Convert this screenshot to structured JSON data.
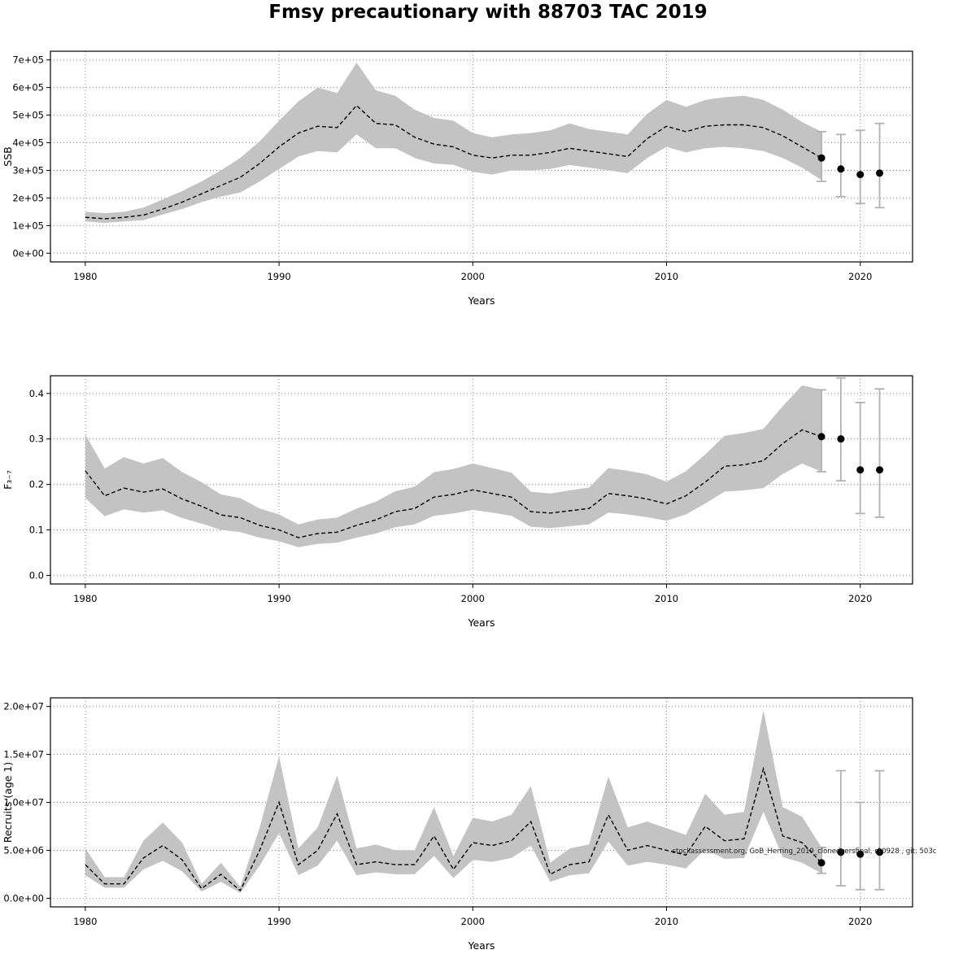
{
  "page": {
    "title": "Fmsy precautionary with 88703 TAC 2019"
  },
  "colors": {
    "band": "#c3c3c3",
    "line": "#000000",
    "point": "#000000",
    "error_bar": "#b2b2b2",
    "grid": "#8a8a8a"
  },
  "chart_data": [
    {
      "id": "ssb",
      "type": "area",
      "title": "",
      "xlabel": "Years",
      "ylabel": "SSB",
      "xlim": [
        1978.2,
        2022.7
      ],
      "ylim": [
        0,
        700000
      ],
      "grid": true,
      "xticks": [
        1980,
        1990,
        2000,
        2010,
        2020
      ],
      "yticks": [
        0,
        100000,
        200000,
        300000,
        400000,
        500000,
        600000,
        700000
      ],
      "ytick_labels": [
        "0e+00",
        "1e+05",
        "2e+05",
        "3e+05",
        "4e+05",
        "5e+05",
        "6e+05",
        "7e+05"
      ],
      "years": [
        1980,
        1981,
        1982,
        1983,
        1984,
        1985,
        1986,
        1987,
        1988,
        1989,
        1990,
        1991,
        1992,
        1993,
        1994,
        1995,
        1996,
        1997,
        1998,
        1999,
        2000,
        2001,
        2002,
        2003,
        2004,
        2005,
        2006,
        2007,
        2008,
        2009,
        2010,
        2011,
        2012,
        2013,
        2014,
        2015,
        2016,
        2017,
        2018
      ],
      "estimate": [
        130000,
        125000,
        130000,
        138000,
        160000,
        185000,
        215000,
        245000,
        275000,
        325000,
        385000,
        435000,
        460000,
        455000,
        535000,
        470000,
        465000,
        420000,
        395000,
        385000,
        355000,
        345000,
        355000,
        355000,
        365000,
        380000,
        370000,
        360000,
        350000,
        415000,
        460000,
        440000,
        460000,
        465000,
        465000,
        455000,
        425000,
        385000,
        345000
      ],
      "lo": [
        115000,
        110000,
        115000,
        120000,
        140000,
        160000,
        185000,
        205000,
        220000,
        260000,
        305000,
        350000,
        370000,
        365000,
        430000,
        380000,
        380000,
        345000,
        325000,
        320000,
        295000,
        285000,
        300000,
        300000,
        305000,
        320000,
        310000,
        300000,
        290000,
        345000,
        385000,
        365000,
        380000,
        385000,
        380000,
        370000,
        345000,
        310000,
        265000
      ],
      "hi": [
        150000,
        145000,
        150000,
        165000,
        195000,
        225000,
        260000,
        300000,
        345000,
        405000,
        480000,
        550000,
        600000,
        580000,
        690000,
        590000,
        570000,
        520000,
        490000,
        480000,
        435000,
        420000,
        430000,
        435000,
        445000,
        470000,
        450000,
        440000,
        430000,
        505000,
        555000,
        530000,
        555000,
        565000,
        570000,
        555000,
        520000,
        475000,
        440000
      ],
      "forecast": {
        "years": [
          2018,
          2019,
          2020,
          2021
        ],
        "values": [
          345000,
          305000,
          285000,
          290000
        ],
        "lo": [
          260000,
          205000,
          180000,
          165000
        ],
        "hi": [
          440000,
          430000,
          445000,
          470000
        ]
      }
    },
    {
      "id": "f",
      "type": "area",
      "title": "",
      "xlabel": "Years",
      "ylabel": "F₃₋₇",
      "xlim": [
        1978.2,
        2022.7
      ],
      "ylim": [
        0,
        0.42
      ],
      "grid": true,
      "xticks": [
        1980,
        1990,
        2000,
        2010,
        2020
      ],
      "yticks": [
        0,
        0.1,
        0.2,
        0.3,
        0.4
      ],
      "ytick_labels": [
        "0.0",
        "0.1",
        "0.2",
        "0.3",
        "0.4"
      ],
      "years": [
        1980,
        1981,
        1982,
        1983,
        1984,
        1985,
        1986,
        1987,
        1988,
        1989,
        1990,
        1991,
        1992,
        1993,
        1994,
        1995,
        1996,
        1997,
        1998,
        1999,
        2000,
        2001,
        2002,
        2003,
        2004,
        2005,
        2006,
        2007,
        2008,
        2009,
        2010,
        2011,
        2012,
        2013,
        2014,
        2015,
        2016,
        2017,
        2018
      ],
      "estimate": [
        0.23,
        0.175,
        0.192,
        0.183,
        0.19,
        0.168,
        0.152,
        0.133,
        0.127,
        0.11,
        0.1,
        0.083,
        0.092,
        0.095,
        0.11,
        0.122,
        0.14,
        0.147,
        0.172,
        0.178,
        0.188,
        0.18,
        0.172,
        0.14,
        0.137,
        0.142,
        0.147,
        0.18,
        0.175,
        0.168,
        0.157,
        0.175,
        0.205,
        0.24,
        0.243,
        0.252,
        0.29,
        0.32,
        0.305
      ],
      "lo": [
        0.17,
        0.13,
        0.145,
        0.138,
        0.143,
        0.126,
        0.114,
        0.1,
        0.095,
        0.083,
        0.075,
        0.062,
        0.069,
        0.072,
        0.083,
        0.092,
        0.106,
        0.112,
        0.131,
        0.136,
        0.144,
        0.138,
        0.131,
        0.107,
        0.104,
        0.108,
        0.112,
        0.138,
        0.134,
        0.128,
        0.12,
        0.134,
        0.158,
        0.184,
        0.187,
        0.192,
        0.223,
        0.246,
        0.228
      ],
      "hi": [
        0.31,
        0.235,
        0.26,
        0.246,
        0.258,
        0.227,
        0.205,
        0.178,
        0.17,
        0.147,
        0.134,
        0.112,
        0.123,
        0.127,
        0.147,
        0.162,
        0.185,
        0.195,
        0.227,
        0.234,
        0.246,
        0.236,
        0.226,
        0.184,
        0.18,
        0.187,
        0.193,
        0.236,
        0.23,
        0.222,
        0.206,
        0.229,
        0.266,
        0.307,
        0.313,
        0.322,
        0.372,
        0.418,
        0.408
      ],
      "forecast": {
        "years": [
          2018,
          2019,
          2020,
          2021
        ],
        "values": [
          0.305,
          0.3,
          0.232,
          0.232
        ],
        "lo": [
          0.228,
          0.208,
          0.136,
          0.128
        ],
        "hi": [
          0.408,
          0.434,
          0.38,
          0.41
        ]
      }
    },
    {
      "id": "recruits",
      "type": "area",
      "title": "",
      "xlabel": "Years",
      "ylabel": "Recruits (age 1)",
      "xlim": [
        1978.2,
        2022.7
      ],
      "ylim": [
        0,
        20000000
      ],
      "grid": true,
      "xticks": [
        1980,
        1990,
        2000,
        2010,
        2020
      ],
      "yticks": [
        0,
        5000000,
        10000000,
        15000000,
        20000000
      ],
      "ytick_labels": [
        "0.0e+00",
        "5.0e+06",
        "1.0e+07",
        "1.5e+07",
        "2.0e+07"
      ],
      "years": [
        1980,
        1981,
        1982,
        1983,
        1984,
        1985,
        1986,
        1987,
        1988,
        1989,
        1990,
        1991,
        1992,
        1993,
        1994,
        1995,
        1996,
        1997,
        1998,
        1999,
        2000,
        2001,
        2002,
        2003,
        2004,
        2005,
        2006,
        2007,
        2008,
        2009,
        2010,
        2011,
        2012,
        2013,
        2014,
        2015,
        2016,
        2017,
        2018
      ],
      "estimate": [
        3500000,
        1500000,
        1500000,
        4200000,
        5500000,
        4000000,
        1000000,
        2500000,
        800000,
        5000000,
        10000000,
        3500000,
        5000000,
        8800000,
        3500000,
        3800000,
        3500000,
        3500000,
        6500000,
        3000000,
        5800000,
        5500000,
        6000000,
        8000000,
        2500000,
        3500000,
        3800000,
        8700000,
        5000000,
        5500000,
        5000000,
        4500000,
        7500000,
        6000000,
        6200000,
        13500000,
        6500000,
        5800000,
        3700000
      ],
      "lo": [
        2400000,
        1100000,
        1100000,
        3000000,
        3900000,
        2800000,
        700000,
        1700000,
        550000,
        3400000,
        6800000,
        2400000,
        3400000,
        6000000,
        2400000,
        2700000,
        2500000,
        2500000,
        4400000,
        2100000,
        4000000,
        3800000,
        4200000,
        5500000,
        1700000,
        2400000,
        2600000,
        5900000,
        3400000,
        3800000,
        3500000,
        3100000,
        5100000,
        4100000,
        4200000,
        9000000,
        4300000,
        3700000,
        2600000
      ],
      "hi": [
        5200000,
        2200000,
        2200000,
        6000000,
        7900000,
        5800000,
        1500000,
        3700000,
        1200000,
        7400000,
        14800000,
        5200000,
        7400000,
        12800000,
        5200000,
        5600000,
        5000000,
        5000000,
        9500000,
        4400000,
        8400000,
        8000000,
        8700000,
        11700000,
        3700000,
        5200000,
        5600000,
        12700000,
        7400000,
        8000000,
        7300000,
        6600000,
        10900000,
        8700000,
        9000000,
        19600000,
        9500000,
        8500000,
        5300000
      ],
      "forecast": {
        "years": [
          2018,
          2019,
          2020,
          2021
        ],
        "values": [
          3700000,
          4800000,
          4600000,
          4800000
        ],
        "lo": [
          2600000,
          1300000,
          900000,
          900000
        ],
        "hi": [
          5300000,
          13300000,
          10000000,
          13300000
        ]
      },
      "watermark": {
        "text": "stockassessment.org, GoB_Herring_2019_clonedversfinal, r10928 , git: 503c",
        "x_year": 2010.3,
        "y_value": 4700000
      }
    }
  ]
}
